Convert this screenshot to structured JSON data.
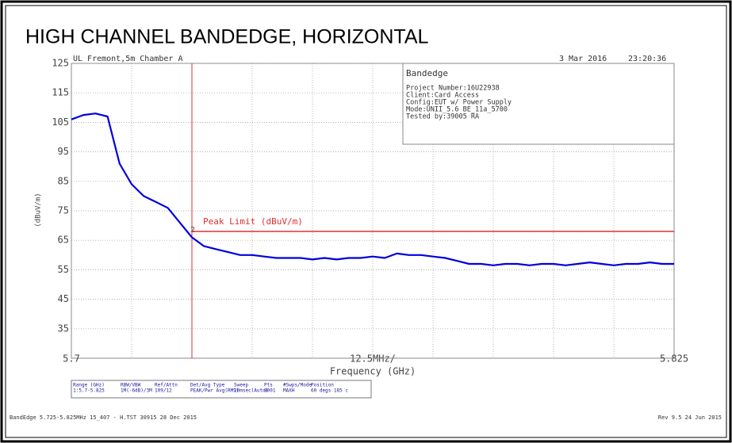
{
  "chart_data": {
    "type": "line",
    "title": "HIGH CHANNEL BANDEDGE, HORIZONTAL",
    "header_left": "UL Fremont,5m Chamber A",
    "header_date": "3 Mar 2016",
    "header_time": "23:20:36",
    "info_box": {
      "title": "Bandedge",
      "lines": [
        "Project Number:16U22938",
        "Client:Card Access",
        "Config:EUT w/ Power Supply",
        "Mode:UNII_5.6 BE_11a_5700",
        "Tested by:39005 RA"
      ]
    },
    "ylabel": "(dBuV/m)",
    "xlabel": "Frequency (GHz)",
    "x_span_label": "12.5MHz/",
    "xlim": [
      5.7,
      5.825
    ],
    "xticks": [
      5.7,
      5.825
    ],
    "xgrid": [
      5.7125,
      5.725,
      5.7375,
      5.75,
      5.7625,
      5.775,
      5.7875,
      5.8,
      5.8125
    ],
    "ylim": [
      25,
      125
    ],
    "yticks": [
      35,
      45,
      55,
      65,
      75,
      85,
      95,
      105,
      115,
      125
    ],
    "grid": true,
    "marker_x": 5.725,
    "marker_label": "2",
    "limit": {
      "label": "Peak Limit (dBuV/m)",
      "value": 68,
      "x_start": 5.725,
      "color": "#e03030"
    },
    "series": [
      {
        "name": "Trace",
        "color": "#0000dd",
        "x": [
          5.7,
          5.7025,
          5.705,
          5.7075,
          5.71,
          5.7125,
          5.715,
          5.7175,
          5.72,
          5.7225,
          5.725,
          5.7275,
          5.73,
          5.7325,
          5.735,
          5.7375,
          5.74,
          5.7425,
          5.745,
          5.7475,
          5.75,
          5.7525,
          5.755,
          5.7575,
          5.76,
          5.7625,
          5.765,
          5.7675,
          5.77,
          5.7725,
          5.775,
          5.7775,
          5.78,
          5.7825,
          5.785,
          5.7875,
          5.79,
          5.7925,
          5.795,
          5.7975,
          5.8,
          5.8025,
          5.805,
          5.8075,
          5.81,
          5.8125,
          5.815,
          5.8175,
          5.82,
          5.8225,
          5.825
        ],
        "values": [
          106,
          107.5,
          108,
          107,
          91,
          84,
          80,
          78,
          76,
          71,
          66,
          63,
          62,
          61,
          60,
          60,
          59.5,
          59,
          59,
          59,
          58.5,
          59,
          58.5,
          59,
          59,
          59.5,
          59,
          60.5,
          60,
          60,
          59.5,
          59,
          58,
          57,
          57,
          56.5,
          57,
          57,
          56.5,
          57,
          57,
          56.5,
          57,
          57.5,
          57,
          56.5,
          57,
          57,
          57.5,
          57,
          57
        ]
      }
    ],
    "settings_table": {
      "headers": [
        "Range (GHz)",
        "RBW/VBW",
        "Ref/Attn",
        "Det/Avg Type",
        "Sweep",
        "Pts",
        "#Swps/Mode",
        "Position"
      ],
      "row": [
        "1:5.7-5.825",
        "1M(-6dB)/3M",
        "109/12",
        "PEAK/Pwr Avg(RMS)",
        "20msec(Auto)",
        "8001",
        "MAXH",
        "60 degs 185 c"
      ]
    },
    "footer_left": "BandEdge 5.725-5.825MHz 15_407 - H.TST 30915 28 Dec 2015",
    "footer_right": "Rev 9.5 24 Jun 2015"
  }
}
